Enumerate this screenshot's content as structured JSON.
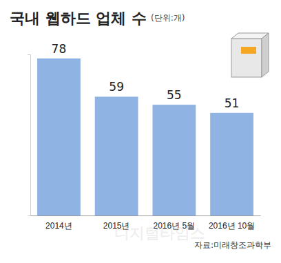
{
  "chart_data": {
    "type": "bar",
    "title": "국내 웹하드 업체 수",
    "subtitle": "(단위:개)",
    "categories": [
      "2014년",
      "2015년",
      "2016년 5월",
      "2016년 10월"
    ],
    "values": [
      78,
      59,
      55,
      51
    ],
    "color": "#8fb4e3",
    "ylim": [
      0,
      80
    ],
    "yticks": [
      0
    ],
    "grid": false,
    "data_labels": true,
    "tick_labels": "x",
    "source": "자료:미래창조과학부",
    "annotations": [
      "디지털타임스"
    ]
  }
}
